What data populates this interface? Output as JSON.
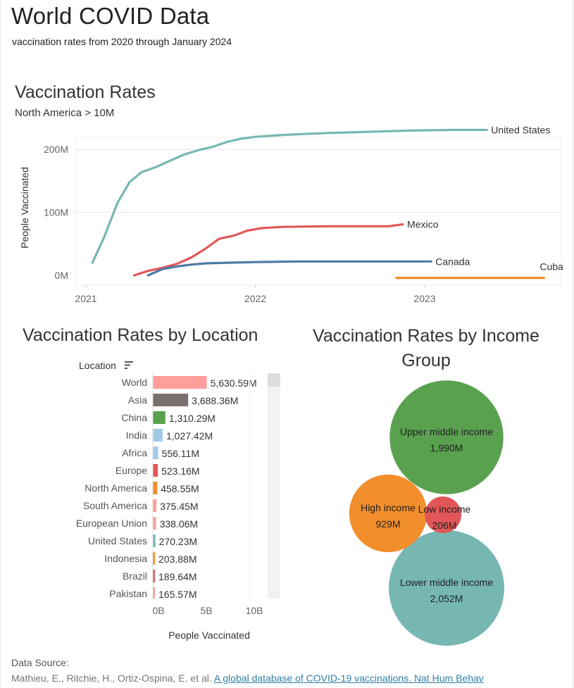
{
  "header": {
    "title": "World COVID Data",
    "subtitle": "vaccination rates from 2020 through January 2024"
  },
  "line_chart": {
    "title": "Vaccination Rates",
    "filter_label": "North America > 10M"
  },
  "bar_chart": {
    "title": "Vaccination Rates by Location",
    "sort_label": "Location"
  },
  "bubble_chart": {
    "title_line1": "Vaccination Rates by Income",
    "title_line2": "Group"
  },
  "source": {
    "label": "Data Source:",
    "authors": "Mathieu, E., Ritchie, H., Ortiz-Ospina, E. et al.",
    "link_text": "A global database of COVID-19 vaccinations. Nat Hum Behav"
  },
  "chart_data": [
    {
      "type": "line",
      "title": "Vaccination Rates",
      "subtitle": "North America > 10M",
      "xlabel": "",
      "ylabel": "People Vaccinated",
      "x_ticks": [
        "2021",
        "2022",
        "2023"
      ],
      "y_ticks": [
        "0M",
        "100M",
        "200M"
      ],
      "ylim": [
        0,
        240
      ],
      "y_unit": "M",
      "grid": true,
      "legend": "end-of-line labels",
      "series": [
        {
          "name": "United States",
          "color": "#76b7b2",
          "points": [
            [
              "2021-01-15",
              20
            ],
            [
              "2021-02-10",
              62
            ],
            [
              "2021-03-10",
              115
            ],
            [
              "2021-04-05",
              148
            ],
            [
              "2021-05-01",
              164
            ],
            [
              "2021-06-01",
              172
            ],
            [
              "2021-07-01",
              182
            ],
            [
              "2021-08-01",
              192
            ],
            [
              "2021-09-01",
              199
            ],
            [
              "2021-10-01",
              204
            ],
            [
              "2021-11-01",
              212
            ],
            [
              "2021-12-01",
              217
            ],
            [
              "2022-01-01",
              220
            ],
            [
              "2022-03-01",
              223
            ],
            [
              "2022-06-01",
              226
            ],
            [
              "2022-09-01",
              228
            ],
            [
              "2022-12-01",
              230
            ],
            [
              "2023-03-01",
              231
            ],
            [
              "2023-05-15",
              231
            ]
          ]
        },
        {
          "name": "Mexico",
          "color": "#e15759",
          "points": [
            [
              "2021-04-15",
              0
            ],
            [
              "2021-05-15",
              7
            ],
            [
              "2021-06-15",
              12
            ],
            [
              "2021-07-15",
              18
            ],
            [
              "2021-08-15",
              28
            ],
            [
              "2021-09-15",
              42
            ],
            [
              "2021-10-15",
              58
            ],
            [
              "2021-11-15",
              63
            ],
            [
              "2021-12-15",
              71
            ],
            [
              "2022-01-15",
              75
            ],
            [
              "2022-03-01",
              77
            ],
            [
              "2022-06-01",
              78
            ],
            [
              "2022-09-01",
              78
            ],
            [
              "2022-10-15",
              78
            ],
            [
              "2022-11-15",
              81
            ]
          ]
        },
        {
          "name": "Canada",
          "color": "#4e79a7",
          "points": [
            [
              "2021-05-15",
              0
            ],
            [
              "2021-06-15",
              10
            ],
            [
              "2021-07-15",
              14
            ],
            [
              "2021-08-15",
              17
            ],
            [
              "2021-09-15",
              19
            ],
            [
              "2021-11-01",
              20
            ],
            [
              "2022-01-01",
              21
            ],
            [
              "2022-04-01",
              22
            ],
            [
              "2022-08-01",
              22
            ],
            [
              "2022-12-01",
              22
            ],
            [
              "2023-01-15",
              22
            ]
          ]
        },
        {
          "name": "Cuba",
          "color": "#f28e2b",
          "points": [
            [
              "2022-11-01",
              -4
            ],
            [
              "2023-01-01",
              -4
            ],
            [
              "2023-04-01",
              -4
            ],
            [
              "2023-07-01",
              -4
            ],
            [
              "2023-09-15",
              -4
            ]
          ]
        }
      ]
    },
    {
      "type": "bar",
      "title": "Vaccination Rates by Location",
      "xlabel": "People Vaccinated",
      "ylabel": "Location",
      "x_ticks": [
        "0B",
        "5B",
        "10B"
      ],
      "xlim": [
        0,
        13
      ],
      "x_unit": "B",
      "categories": [
        "World",
        "Asia",
        "China",
        "India",
        "Africa",
        "Europe",
        "North America",
        "South America",
        "European Union",
        "United States",
        "Indonesia",
        "Brazil",
        "Pakistan"
      ],
      "values": [
        5630.59,
        3688.36,
        1310.29,
        1027.42,
        556.11,
        523.16,
        458.55,
        375.45,
        338.06,
        270.23,
        203.88,
        189.64,
        165.57
      ],
      "value_labels": [
        "5,630.59M",
        "3,688.36M",
        "1,310.29M",
        "1,027.42M",
        "556.11M",
        "523.16M",
        "458.55M",
        "375.45M",
        "338.06M",
        "270.23M",
        "203.88M",
        "189.64M",
        "165.57M"
      ],
      "colors": [
        "#ff9d9a",
        "#79706e",
        "#59a14f",
        "#a0cbe8",
        "#a0cbe8",
        "#e15759",
        "#f28e2b",
        "#ff9d9a",
        "#ff9d9a",
        "#76b7b2",
        "#f28e2b",
        "#e15759",
        "#ff9d9a"
      ]
    },
    {
      "type": "bubble",
      "title": "Vaccination Rates by Income Group",
      "series": [
        {
          "name": "Upper middle income",
          "value": 1990,
          "label": "1,990M",
          "color": "#59a14f"
        },
        {
          "name": "Lower middle income",
          "value": 2052,
          "label": "2,052M",
          "color": "#76b7b2"
        },
        {
          "name": "High income",
          "value": 929,
          "label": "929M",
          "color": "#f28e2b"
        },
        {
          "name": "Low income",
          "value": 206,
          "label": "206M",
          "color": "#e15759"
        }
      ]
    }
  ]
}
